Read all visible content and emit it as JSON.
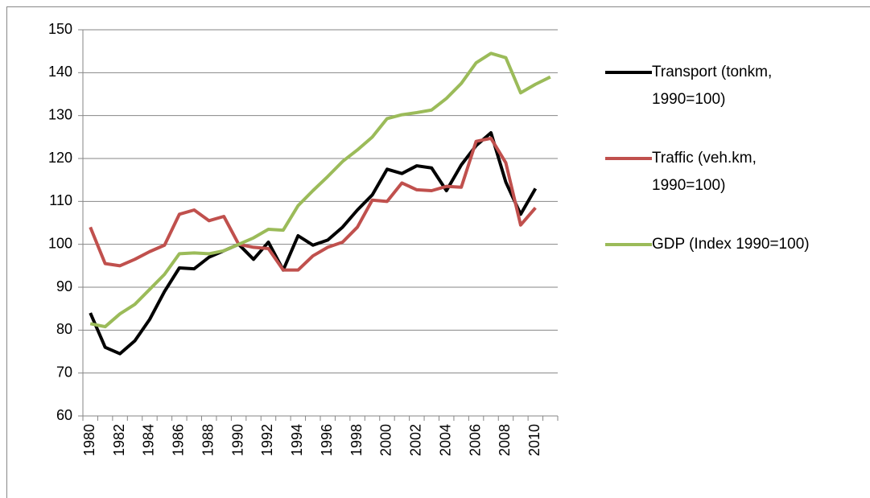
{
  "chart_data": {
    "type": "line",
    "categories": [
      "1980",
      null,
      "1982",
      null,
      "1984",
      null,
      "1986",
      null,
      "1988",
      null,
      "1990",
      null,
      "1992",
      null,
      "1994",
      null,
      "1996",
      null,
      "1998",
      null,
      "2000",
      null,
      "2002",
      null,
      "2004",
      null,
      "2006",
      null,
      "2008",
      null,
      "2010",
      null
    ],
    "series": [
      {
        "name": "Transport (tonkm, 1990=100)",
        "color": "#000000",
        "values": [
          84,
          76,
          74.5,
          77.5,
          82.5,
          89,
          94.5,
          94.3,
          97,
          98.5,
          100,
          96.5,
          100.5,
          94,
          102,
          99.8,
          101,
          104,
          108,
          111.5,
          117.5,
          116.5,
          118.3,
          117.8,
          112.5,
          118.5,
          123,
          126,
          114.5,
          107,
          113,
          null
        ]
      },
      {
        "name": "Traffic (veh.km, 1990=100)",
        "color": "#c0504d",
        "values": [
          104,
          95.5,
          95,
          96.5,
          98.3,
          99.8,
          107,
          108,
          105.5,
          106.5,
          100,
          99.3,
          99,
          94,
          94,
          97.3,
          99.3,
          100.5,
          104,
          110.3,
          110,
          114.3,
          112.7,
          112.5,
          113.5,
          113.3,
          124,
          124.7,
          119,
          104.5,
          108.5,
          null
        ]
      },
      {
        "name": "GDP (Index 1990=100)",
        "color": "#9bbb59",
        "values": [
          81.5,
          80.8,
          83.8,
          86,
          89.5,
          93,
          97.8,
          98,
          97.8,
          98.5,
          100,
          101.5,
          103.5,
          103.3,
          109,
          112.5,
          115.8,
          119.3,
          122,
          125,
          129.3,
          130.2,
          130.7,
          131.3,
          134,
          137.5,
          142.3,
          144.5,
          143.5,
          135.3,
          137.3,
          139
        ]
      }
    ],
    "ylim": [
      60,
      150
    ],
    "yticks": [
      60,
      70,
      80,
      90,
      100,
      110,
      120,
      130,
      140,
      150
    ],
    "grid": true
  }
}
